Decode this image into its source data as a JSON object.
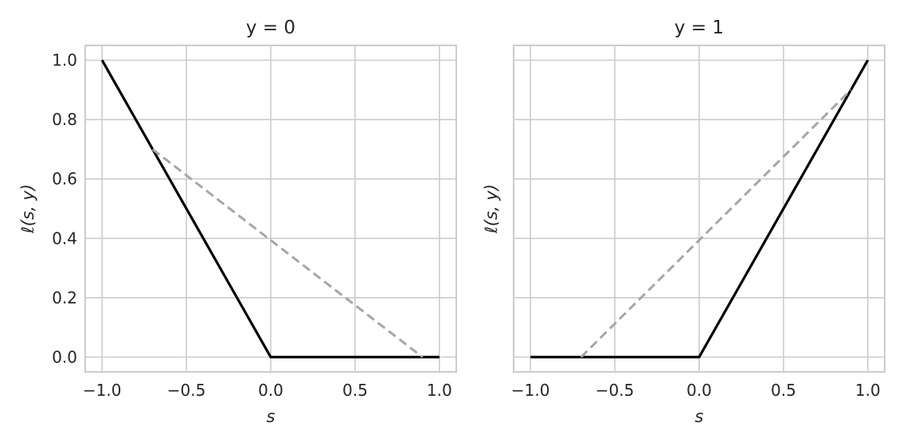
{
  "chart_data": [
    {
      "type": "line",
      "title": "y = 0",
      "xlabel": "s",
      "ylabel": "ℓ(s, y)",
      "xlim": [
        -1.1,
        1.1
      ],
      "ylim": [
        -0.05,
        1.05
      ],
      "xticks": [
        "−1.0",
        "−0.5",
        "0.0",
        "0.5",
        "1.0"
      ],
      "yticks": [
        "0.0",
        "0.2",
        "0.4",
        "0.6",
        "0.8",
        "1.0"
      ],
      "grid": true,
      "series": [
        {
          "style": "solid",
          "color": "#000000",
          "x": [
            -1.0,
            0.0,
            1.0
          ],
          "y": [
            1.0,
            0.0,
            0.0
          ]
        },
        {
          "style": "dashed",
          "color": "#a6a6a6",
          "x": [
            -0.7,
            0.9
          ],
          "y": [
            0.7,
            0.0
          ]
        }
      ]
    },
    {
      "type": "line",
      "title": "y = 1",
      "xlabel": "s",
      "ylabel": "ℓ(s, y)",
      "xlim": [
        -1.1,
        1.1
      ],
      "ylim": [
        -0.05,
        1.05
      ],
      "xticks": [
        "−1.0",
        "−0.5",
        "0.0",
        "0.5",
        "1.0"
      ],
      "yticks": [],
      "grid": true,
      "series": [
        {
          "style": "solid",
          "color": "#000000",
          "x": [
            -1.0,
            0.0,
            1.0
          ],
          "y": [
            0.0,
            0.0,
            1.0
          ]
        },
        {
          "style": "dashed",
          "color": "#a6a6a6",
          "x": [
            -0.7,
            0.9
          ],
          "y": [
            0.0,
            0.9
          ]
        }
      ]
    }
  ],
  "colors": {
    "grid": "#cccccc",
    "frame": "#cccccc",
    "solid_line": "#000000",
    "dashed_line": "#a6a6a6"
  }
}
